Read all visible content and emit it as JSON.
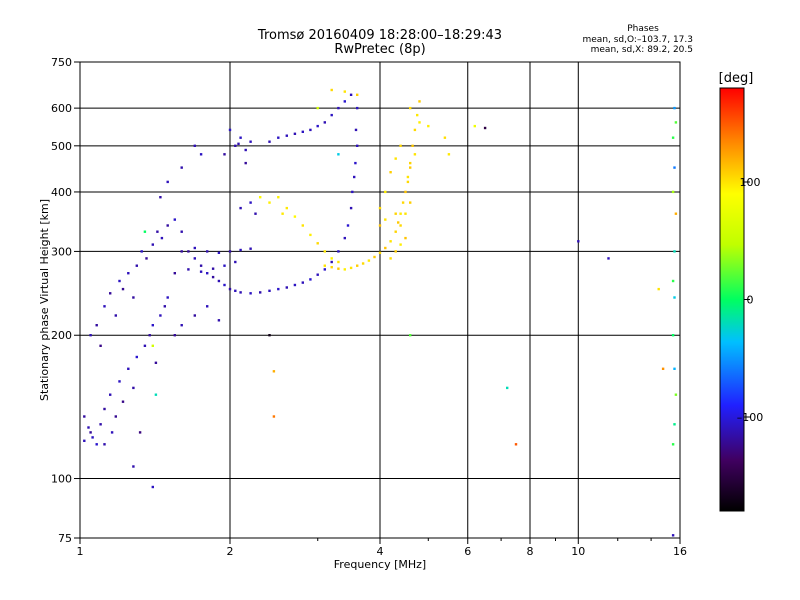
{
  "header": {
    "title_line1": "Tromsø 20160409 18:28:00–18:29:43",
    "title_line2": "RwPretec (8p)"
  },
  "phases_box": {
    "heading": "Phases",
    "line_o": "mean, sd,O:–103.7, 17.3",
    "line_x": "mean, sd,X:  89.2, 20.5"
  },
  "colorbar": {
    "unit_label": "[deg]",
    "range": [
      -180,
      180
    ],
    "ticks": [
      {
        "value": 100,
        "label": "100"
      },
      {
        "value": 0,
        "label": "0"
      },
      {
        "value": -100,
        "label": "–100"
      }
    ]
  },
  "chart_data": {
    "type": "scatter",
    "xlabel": "Frequency [MHz]",
    "ylabel": "Stationary phase Virtual Height [km]",
    "xscale": "log",
    "yscale": "log",
    "xlim": [
      1,
      16
    ],
    "ylim": [
      75,
      750
    ],
    "xticks": [
      {
        "value": 1,
        "label": "1"
      },
      {
        "value": 2,
        "label": "2"
      },
      {
        "value": 4,
        "label": "4"
      },
      {
        "value": 6,
        "label": "6"
      },
      {
        "value": 8,
        "label": "8"
      },
      {
        "value": 10,
        "label": "10"
      },
      {
        "value": 16,
        "label": "16"
      }
    ],
    "yticks": [
      {
        "value": 75,
        "label": "75"
      },
      {
        "value": 100,
        "label": "100"
      },
      {
        "value": 200,
        "label": "200"
      },
      {
        "value": 300,
        "label": "300"
      },
      {
        "value": 400,
        "label": "400"
      },
      {
        "value": 500,
        "label": "500"
      },
      {
        "value": 600,
        "label": "600"
      },
      {
        "value": 750,
        "label": "750"
      }
    ],
    "grid_x": [
      2,
      4,
      6,
      8,
      10
    ],
    "grid_y": [
      100,
      200,
      300,
      400,
      500,
      600
    ],
    "color_by": "phase_deg",
    "series": [
      {
        "role": "o-mode",
        "points": [
          [
            1.02,
            120,
            -110
          ],
          [
            1.05,
            125,
            -120
          ],
          [
            1.08,
            118,
            -105
          ],
          [
            1.1,
            130,
            -115
          ],
          [
            1.12,
            140,
            -118
          ],
          [
            1.15,
            150,
            -112
          ],
          [
            1.18,
            135,
            -122
          ],
          [
            1.2,
            160,
            -108
          ],
          [
            1.22,
            145,
            -125
          ],
          [
            1.25,
            170,
            -110
          ],
          [
            1.28,
            155,
            -116
          ],
          [
            1.3,
            180,
            -104
          ],
          [
            1.32,
            125,
            -128
          ],
          [
            1.35,
            190,
            -112
          ],
          [
            1.38,
            200,
            -118
          ],
          [
            1.4,
            210,
            -106
          ],
          [
            1.42,
            175,
            -120
          ],
          [
            1.45,
            220,
            -110
          ],
          [
            1.48,
            230,
            -115
          ],
          [
            1.5,
            240,
            -108
          ],
          [
            1.05,
            200,
            -112
          ],
          [
            1.08,
            210,
            -118
          ],
          [
            1.1,
            190,
            -125
          ],
          [
            1.12,
            230,
            -110
          ],
          [
            1.15,
            245,
            -120
          ],
          [
            1.18,
            220,
            -115
          ],
          [
            1.2,
            260,
            -108
          ],
          [
            1.22,
            250,
            -122
          ],
          [
            1.25,
            270,
            -110
          ],
          [
            1.28,
            240,
            -118
          ],
          [
            1.3,
            280,
            -114
          ],
          [
            1.33,
            300,
            -108
          ],
          [
            1.36,
            290,
            -120
          ],
          [
            1.4,
            310,
            -112
          ],
          [
            1.43,
            330,
            -116
          ],
          [
            1.46,
            320,
            -110
          ],
          [
            1.5,
            340,
            -118
          ],
          [
            1.55,
            350,
            -106
          ],
          [
            1.6,
            330,
            -114
          ],
          [
            1.65,
            300,
            -120
          ],
          [
            1.7,
            290,
            -110
          ],
          [
            1.75,
            280,
            -115
          ],
          [
            1.8,
            270,
            -108
          ],
          [
            1.85,
            265,
            -118
          ],
          [
            1.9,
            260,
            -112
          ],
          [
            1.95,
            255,
            -106
          ],
          [
            2.0,
            250,
            -116
          ],
          [
            2.05,
            248,
            -110
          ],
          [
            2.1,
            246,
            -112
          ],
          [
            2.2,
            245,
            -108
          ],
          [
            2.3,
            246,
            -114
          ],
          [
            2.4,
            248,
            -110
          ],
          [
            2.5,
            250,
            -106
          ],
          [
            2.6,
            252,
            -112
          ],
          [
            2.7,
            255,
            -108
          ],
          [
            2.8,
            258,
            -110
          ],
          [
            2.9,
            262,
            -104
          ],
          [
            3.0,
            268,
            -110
          ],
          [
            3.1,
            275,
            -106
          ],
          [
            3.2,
            285,
            -112
          ],
          [
            3.3,
            300,
            -108
          ],
          [
            3.4,
            320,
            -110
          ],
          [
            3.45,
            340,
            -104
          ],
          [
            3.5,
            370,
            -112
          ],
          [
            3.52,
            400,
            -108
          ],
          [
            3.55,
            430,
            -110
          ],
          [
            3.57,
            460,
            -106
          ],
          [
            3.6,
            500,
            -110
          ],
          [
            3.58,
            540,
            -112
          ],
          [
            1.6,
            300,
            -118
          ],
          [
            1.7,
            305,
            -110
          ],
          [
            1.8,
            300,
            -114
          ],
          [
            1.9,
            298,
            -108
          ],
          [
            2.0,
            300,
            -116
          ],
          [
            2.1,
            302,
            -110
          ],
          [
            2.2,
            304,
            -112
          ],
          [
            1.55,
            270,
            -120
          ],
          [
            1.65,
            275,
            -114
          ],
          [
            1.75,
            272,
            -110
          ],
          [
            1.85,
            276,
            -116
          ],
          [
            1.95,
            280,
            -108
          ],
          [
            2.05,
            285,
            -112
          ],
          [
            1.55,
            200,
            -120
          ],
          [
            1.6,
            210,
            -112
          ],
          [
            1.7,
            220,
            -118
          ],
          [
            1.8,
            230,
            -110
          ],
          [
            1.9,
            215,
            -114
          ],
          [
            2.05,
            500,
            -115
          ],
          [
            2.1,
            520,
            -108
          ],
          [
            2.15,
            490,
            -112
          ],
          [
            2.2,
            510,
            -110
          ],
          [
            1.95,
            480,
            -118
          ],
          [
            2.0,
            540,
            -106
          ],
          [
            2.08,
            505,
            -114
          ],
          [
            2.15,
            460,
            -120
          ],
          [
            2.4,
            510,
            -112
          ],
          [
            2.5,
            520,
            -108
          ],
          [
            2.6,
            525,
            -110
          ],
          [
            2.7,
            530,
            -112
          ],
          [
            2.8,
            535,
            -108
          ],
          [
            2.9,
            540,
            -110
          ],
          [
            3.0,
            550,
            -106
          ],
          [
            3.1,
            560,
            -112
          ],
          [
            3.2,
            580,
            -108
          ],
          [
            3.3,
            600,
            -110
          ],
          [
            3.4,
            620,
            -104
          ],
          [
            3.5,
            640,
            -110
          ],
          [
            3.6,
            600,
            -108
          ],
          [
            2.1,
            370,
            -112
          ],
          [
            2.2,
            380,
            -108
          ],
          [
            2.25,
            360,
            -114
          ],
          [
            1.7,
            500,
            -112
          ],
          [
            1.75,
            480,
            -108
          ],
          [
            1.6,
            450,
            -114
          ],
          [
            1.5,
            420,
            -110
          ],
          [
            1.45,
            390,
            -116
          ],
          [
            1.02,
            135,
            -118
          ],
          [
            1.04,
            128,
            -112
          ],
          [
            1.06,
            122,
            -108
          ],
          [
            1.12,
            118,
            -114
          ],
          [
            1.16,
            125,
            -110
          ],
          [
            10.0,
            315,
            -112
          ],
          [
            11.5,
            290,
            -110
          ],
          [
            1.4,
            96,
            -108
          ],
          [
            1.28,
            106,
            -114
          ]
        ]
      },
      {
        "role": "x-mode",
        "points": [
          [
            3.1,
            280,
            100
          ],
          [
            3.2,
            278,
            105
          ],
          [
            3.3,
            276,
            110
          ],
          [
            3.4,
            275,
            95
          ],
          [
            3.5,
            277,
            100
          ],
          [
            3.6,
            280,
            108
          ],
          [
            3.7,
            283,
            104
          ],
          [
            3.8,
            287,
            98
          ],
          [
            3.9,
            292,
            110
          ],
          [
            4.0,
            298,
            104
          ],
          [
            4.1,
            305,
            112
          ],
          [
            4.2,
            315,
            100
          ],
          [
            4.3,
            330,
            106
          ],
          [
            4.35,
            345,
            110
          ],
          [
            4.4,
            360,
            98
          ],
          [
            4.45,
            380,
            104
          ],
          [
            4.5,
            400,
            112
          ],
          [
            4.55,
            430,
            100
          ],
          [
            4.6,
            460,
            106
          ],
          [
            4.65,
            500,
            110
          ],
          [
            4.7,
            540,
            104
          ],
          [
            4.75,
            580,
            98
          ],
          [
            4.8,
            620,
            108
          ],
          [
            4.2,
            290,
            102
          ],
          [
            4.3,
            300,
            108
          ],
          [
            4.4,
            310,
            96
          ],
          [
            4.5,
            320,
            112
          ],
          [
            4.4,
            340,
            104
          ],
          [
            4.5,
            360,
            100
          ],
          [
            4.6,
            380,
            108
          ],
          [
            4.55,
            420,
            104
          ],
          [
            4.6,
            450,
            110
          ],
          [
            4.7,
            480,
            100
          ],
          [
            4.4,
            500,
            104
          ],
          [
            4.3,
            470,
            100
          ],
          [
            4.2,
            440,
            108
          ],
          [
            4.1,
            400,
            96
          ],
          [
            4.0,
            370,
            104
          ],
          [
            2.5,
            390,
            95
          ],
          [
            2.6,
            370,
            98
          ],
          [
            2.7,
            355,
            92
          ],
          [
            2.8,
            340,
            100
          ],
          [
            2.9,
            325,
            96
          ],
          [
            3.0,
            312,
            104
          ],
          [
            3.1,
            300,
            98
          ],
          [
            3.2,
            290,
            94
          ],
          [
            3.3,
            285,
            100
          ],
          [
            4.0,
            340,
            112
          ],
          [
            4.1,
            350,
            100
          ],
          [
            4.3,
            360,
            106
          ],
          [
            2.3,
            390,
            92
          ],
          [
            2.4,
            380,
            96
          ],
          [
            2.55,
            360,
            98
          ],
          [
            3.2,
            655,
            104
          ],
          [
            3.4,
            650,
            100
          ],
          [
            3.6,
            640,
            108
          ],
          [
            4.8,
            560,
            96
          ],
          [
            4.6,
            600,
            104
          ],
          [
            5.4,
            520,
            102
          ],
          [
            5.5,
            480,
            98
          ],
          [
            5.0,
            550,
            96
          ]
        ]
      },
      {
        "role": "noise",
        "points": [
          [
            2.4,
            200,
            -170
          ],
          [
            2.45,
            168,
            120
          ],
          [
            2.45,
            135,
            140
          ],
          [
            4.6,
            200,
            20
          ],
          [
            7.2,
            155,
            -20
          ],
          [
            7.5,
            118,
            150
          ],
          [
            6.5,
            545,
            -150
          ],
          [
            6.2,
            550,
            80
          ],
          [
            15.5,
            520,
            10
          ],
          [
            15.6,
            450,
            -60
          ],
          [
            15.5,
            400,
            40
          ],
          [
            15.7,
            360,
            120
          ],
          [
            15.6,
            300,
            -20
          ],
          [
            15.5,
            260,
            10
          ],
          [
            15.6,
            240,
            -30
          ],
          [
            15.5,
            200,
            0
          ],
          [
            15.6,
            170,
            -40
          ],
          [
            15.7,
            150,
            30
          ],
          [
            15.6,
            130,
            -10
          ],
          [
            15.5,
            118,
            10
          ],
          [
            15.6,
            600,
            -50
          ],
          [
            15.7,
            560,
            20
          ],
          [
            15.5,
            76,
            -110
          ],
          [
            14.5,
            250,
            100
          ],
          [
            14.8,
            170,
            130
          ],
          [
            3.3,
            480,
            -30
          ],
          [
            3.0,
            600,
            60
          ],
          [
            1.35,
            330,
            0
          ],
          [
            1.4,
            190,
            60
          ],
          [
            1.42,
            150,
            -20
          ]
        ]
      }
    ]
  }
}
